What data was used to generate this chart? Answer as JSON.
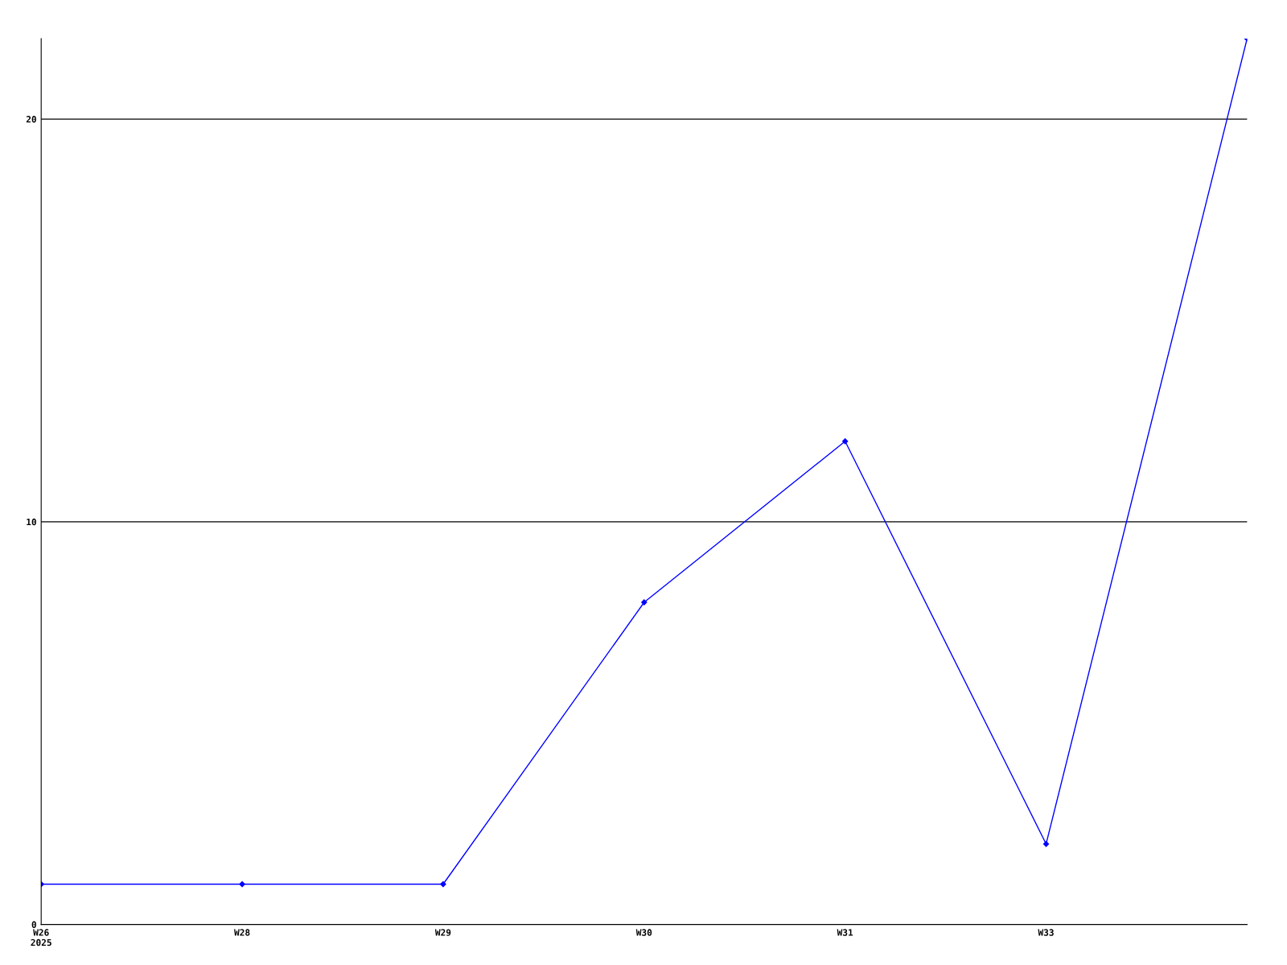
{
  "chart_data": {
    "type": "line",
    "categories": [
      "W26\n2025",
      "W28",
      "W29",
      "W30",
      "W31",
      "W33",
      null
    ],
    "series": [
      {
        "color": "#0000ff",
        "values": [
          1,
          1,
          1,
          8,
          12,
          2,
          22
        ]
      }
    ],
    "ylim": [
      0,
      22
    ],
    "yticks": [
      0,
      10,
      20
    ],
    "grid": "y",
    "marker": "diamond",
    "line_style": "solid"
  }
}
